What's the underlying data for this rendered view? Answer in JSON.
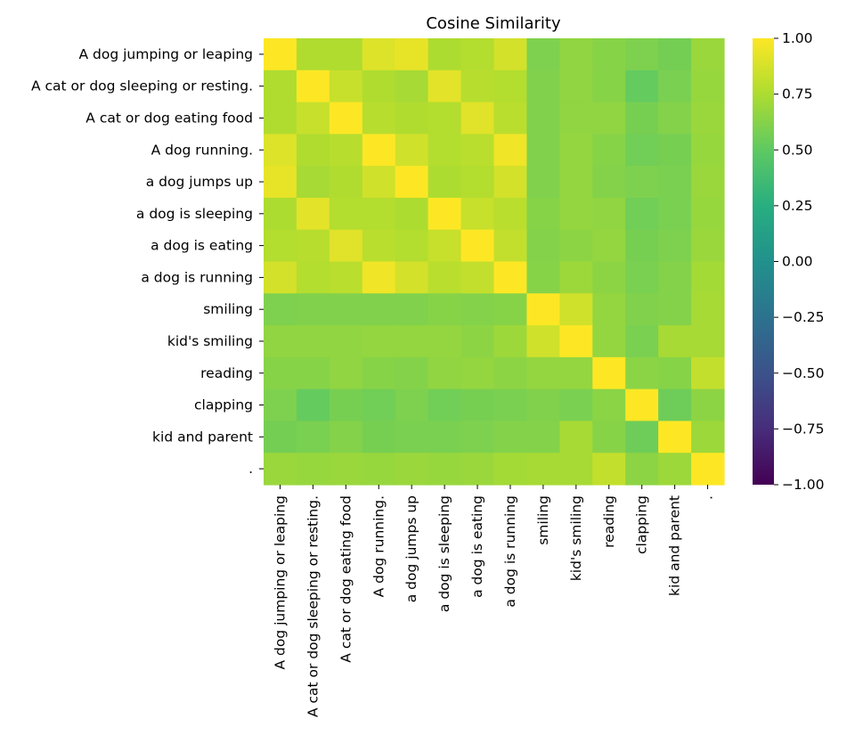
{
  "chart_data": {
    "type": "heatmap",
    "title": "Cosine Similarity",
    "xlabel": "",
    "ylabel": "",
    "labels": [
      "A dog jumping or leaping",
      "A cat or dog sleeping or resting.",
      "A cat or dog eating food",
      "A dog running.",
      "a dog jumps up",
      "a dog is sleeping",
      "a dog is eating",
      "a dog is running",
      "smiling",
      "kid's smiling",
      "reading",
      "clapping",
      "kid and parent",
      "."
    ],
    "matrix": [
      [
        1.0,
        0.76,
        0.76,
        0.9,
        0.93,
        0.75,
        0.77,
        0.87,
        0.6,
        0.66,
        0.63,
        0.6,
        0.57,
        0.69
      ],
      [
        0.76,
        1.0,
        0.83,
        0.76,
        0.73,
        0.92,
        0.78,
        0.77,
        0.61,
        0.66,
        0.63,
        0.52,
        0.59,
        0.68
      ],
      [
        0.76,
        0.83,
        1.0,
        0.78,
        0.76,
        0.77,
        0.91,
        0.79,
        0.61,
        0.66,
        0.66,
        0.58,
        0.62,
        0.69
      ],
      [
        0.9,
        0.76,
        0.78,
        1.0,
        0.86,
        0.77,
        0.79,
        0.96,
        0.61,
        0.67,
        0.63,
        0.56,
        0.58,
        0.68
      ],
      [
        0.93,
        0.73,
        0.76,
        0.86,
        1.0,
        0.75,
        0.77,
        0.87,
        0.61,
        0.67,
        0.62,
        0.6,
        0.59,
        0.69
      ],
      [
        0.75,
        0.92,
        0.77,
        0.77,
        0.75,
        1.0,
        0.83,
        0.79,
        0.63,
        0.67,
        0.66,
        0.56,
        0.59,
        0.68
      ],
      [
        0.77,
        0.78,
        0.91,
        0.79,
        0.77,
        0.83,
        1.0,
        0.82,
        0.62,
        0.65,
        0.67,
        0.58,
        0.6,
        0.69
      ],
      [
        0.87,
        0.77,
        0.79,
        0.96,
        0.87,
        0.79,
        0.82,
        1.0,
        0.63,
        0.7,
        0.65,
        0.59,
        0.62,
        0.72
      ],
      [
        0.6,
        0.61,
        0.61,
        0.61,
        0.61,
        0.63,
        0.62,
        0.63,
        1.0,
        0.86,
        0.67,
        0.61,
        0.62,
        0.73
      ],
      [
        0.66,
        0.66,
        0.66,
        0.67,
        0.67,
        0.67,
        0.65,
        0.7,
        0.86,
        1.0,
        0.67,
        0.59,
        0.73,
        0.73
      ],
      [
        0.63,
        0.63,
        0.66,
        0.63,
        0.62,
        0.66,
        0.67,
        0.65,
        0.67,
        0.67,
        1.0,
        0.64,
        0.63,
        0.82
      ],
      [
        0.6,
        0.52,
        0.58,
        0.56,
        0.6,
        0.56,
        0.58,
        0.59,
        0.61,
        0.59,
        0.64,
        1.0,
        0.55,
        0.65
      ],
      [
        0.57,
        0.59,
        0.62,
        0.58,
        0.59,
        0.59,
        0.6,
        0.62,
        0.62,
        0.73,
        0.63,
        0.55,
        1.0,
        0.7
      ],
      [
        0.69,
        0.68,
        0.69,
        0.68,
        0.69,
        0.68,
        0.69,
        0.72,
        0.73,
        0.73,
        0.82,
        0.65,
        0.7,
        1.0
      ]
    ],
    "colorbar": {
      "colormap": "viridis",
      "vmin": -1.0,
      "vmax": 1.0,
      "ticks": [
        "1.00",
        "0.75",
        "0.50",
        "0.25",
        "0.00",
        "−0.25",
        "−0.50",
        "−0.75",
        "−1.00"
      ],
      "tick_values": [
        1.0,
        0.75,
        0.5,
        0.25,
        0.0,
        -0.25,
        -0.5,
        -0.75,
        -1.0
      ]
    },
    "grid": false,
    "legend": "colorbar-right"
  }
}
